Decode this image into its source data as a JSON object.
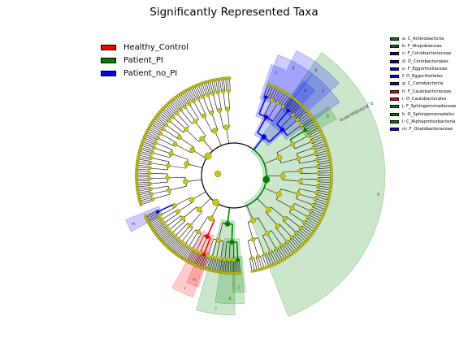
{
  "chart_data": {
    "type": "cladogram",
    "title": "Significantly Represented Taxa",
    "groups": [
      {
        "name": "Healthy_Control",
        "color": "#ff0000"
      },
      {
        "name": "Patient_PI",
        "color": "#008000"
      },
      {
        "name": "Patient_no_PI",
        "color": "#0000ff"
      }
    ],
    "biomarkers": [
      {
        "letter": "a",
        "label": "a: C_Actinobacteria",
        "group": "Patient_PI"
      },
      {
        "letter": "b",
        "label": "b: F_Atopobiaceae",
        "group": "Patient_PI"
      },
      {
        "letter": "c",
        "label": "c: F_Coriobacteriaceae",
        "group": "Patient_no_PI"
      },
      {
        "letter": "d",
        "label": "d: O_Coriobacteriales",
        "group": "Patient_no_PI"
      },
      {
        "letter": "e",
        "label": "e: F_Eggerthellaceae",
        "group": "Patient_no_PI"
      },
      {
        "letter": "f",
        "label": "f: O_Eggerthellales",
        "group": "Patient_no_PI"
      },
      {
        "letter": "g",
        "label": "g: C_Coriobacteriia",
        "group": "Patient_no_PI"
      },
      {
        "letter": "h",
        "label": "h: F_Caulobacteraceae",
        "group": "Healthy_Control"
      },
      {
        "letter": "i",
        "label": "i: O_Caulobacterales",
        "group": "Healthy_Control"
      },
      {
        "letter": "j",
        "label": "j: F_Sphingomonadaceae",
        "group": "Patient_PI"
      },
      {
        "letter": "k",
        "label": "k: O_Sphingomonadales",
        "group": "Patient_PI"
      },
      {
        "letter": "l",
        "label": "l: C_Alphaproteobacteria",
        "group": "Patient_PI"
      },
      {
        "letter": "m",
        "label": "m: F_Oxalobacteraceae",
        "group": "Patient_no_PI"
      }
    ],
    "phylum_labels": [
      {
        "text": "p_Actinobacteria",
        "group": "Patient_PI"
      }
    ]
  }
}
